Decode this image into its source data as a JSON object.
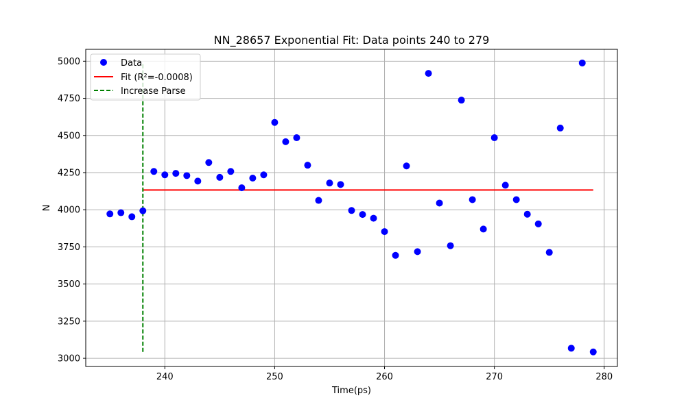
{
  "chart_data": {
    "type": "scatter",
    "title": "NN_28657 Exponential Fit: Data points 240 to 279",
    "xlabel": "Time(ps)",
    "ylabel": "N",
    "xlim": [
      232.8,
      281.2
    ],
    "ylim": [
      2945,
      5080
    ],
    "x_ticks": [
      240,
      250,
      260,
      270,
      280
    ],
    "y_ticks": [
      3000,
      3250,
      3500,
      3750,
      4000,
      4250,
      4500,
      4750,
      5000
    ],
    "grid": true,
    "legend_position": "top-left",
    "legend": {
      "data_label": "Data",
      "fit_label": "Fit (R²=-0.0008)",
      "increase_label": "Increase Parse"
    },
    "series": [
      {
        "name": "Data",
        "kind": "scatter",
        "color": "#0000ff",
        "x": [
          235,
          236,
          237,
          238,
          239,
          240,
          241,
          242,
          243,
          244,
          245,
          246,
          247,
          248,
          249,
          250,
          251,
          252,
          253,
          254,
          255,
          256,
          257,
          258,
          259,
          260,
          261,
          262,
          263,
          264,
          265,
          266,
          267,
          268,
          269,
          270,
          271,
          272,
          273,
          274,
          275,
          276,
          277,
          278,
          279
        ],
        "y": [
          3972,
          3980,
          3953,
          3993,
          4258,
          4235,
          4245,
          4230,
          4193,
          4318,
          4218,
          4258,
          4148,
          4213,
          4235,
          4588,
          4458,
          4485,
          4300,
          4063,
          4180,
          4170,
          3995,
          3968,
          3943,
          3853,
          3693,
          4295,
          3718,
          4918,
          4045,
          3758,
          4738,
          4068,
          3870,
          4485,
          4165,
          4068,
          3970,
          3905,
          3713,
          4550,
          3068,
          4988,
          3043
        ]
      },
      {
        "name": "Fit (R²=-0.0008)",
        "kind": "line",
        "color": "#ff0000",
        "x": [
          238,
          279
        ],
        "y": [
          4133,
          4133
        ]
      },
      {
        "name": "Increase Parse",
        "kind": "vline",
        "color": "#008000",
        "x": 238,
        "y": [
          3043,
          4988
        ]
      }
    ]
  }
}
